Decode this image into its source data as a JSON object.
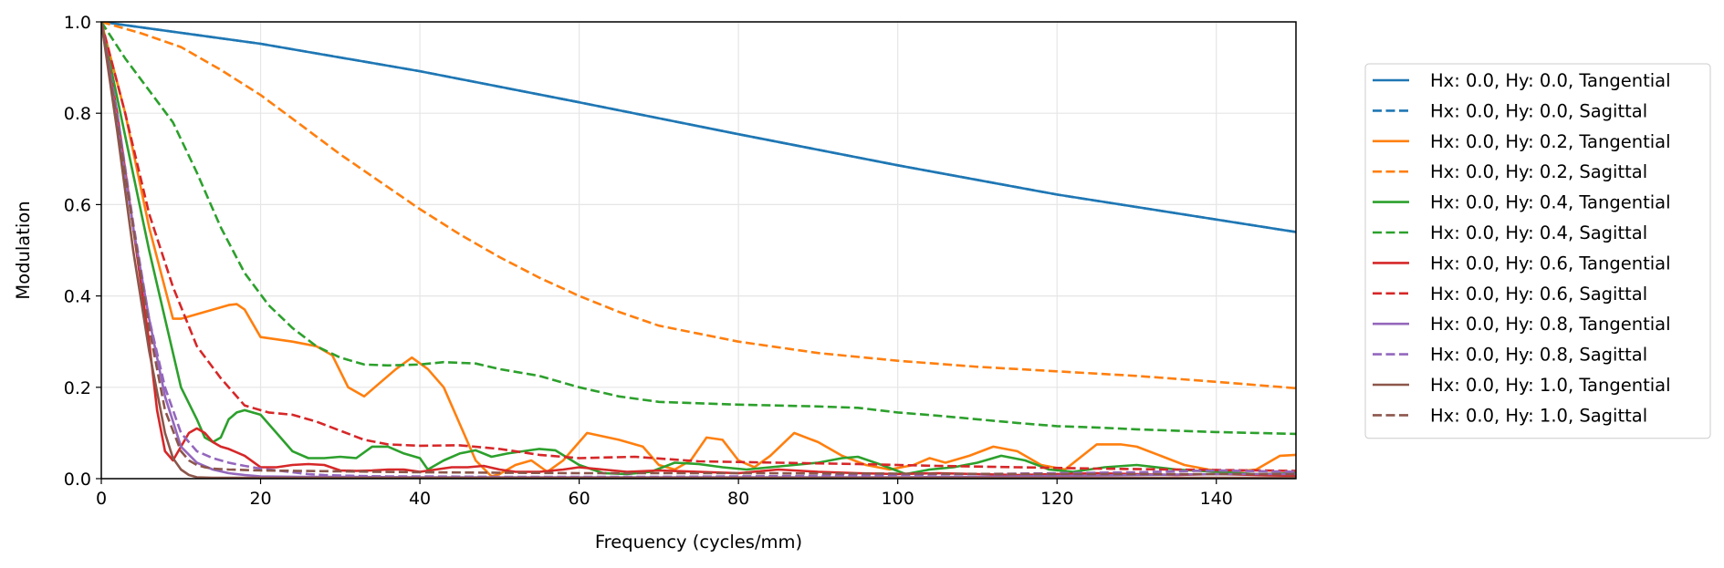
{
  "chart_data": {
    "type": "line",
    "title": "",
    "xlabel": "Frequency (cycles/mm)",
    "ylabel": "Modulation",
    "xlim": [
      0,
      150
    ],
    "ylim": [
      0,
      1.0
    ],
    "xticks": [
      0,
      20,
      40,
      60,
      80,
      100,
      120,
      140
    ],
    "yticks": [
      0.0,
      0.2,
      0.4,
      0.6,
      0.8,
      1.0
    ],
    "xtick_labels": [
      "0",
      "20",
      "40",
      "60",
      "80",
      "100",
      "120",
      "140"
    ],
    "ytick_labels": [
      "0.0",
      "0.2",
      "0.4",
      "0.6",
      "0.8",
      "1.0"
    ],
    "grid": true,
    "legend_position": "right",
    "series": [
      {
        "name": "Hx: 0.0, Hy: 0.0, Tangential",
        "color": "#1f77b4",
        "dash": "solid",
        "x": [
          0,
          20,
          40,
          60,
          80,
          100,
          120,
          150
        ],
        "y": [
          1.0,
          0.952,
          0.892,
          0.824,
          0.754,
          0.686,
          0.622,
          0.54
        ]
      },
      {
        "name": "Hx: 0.0, Hy: 0.0, Sagittal",
        "color": "#1f77b4",
        "dash": "dashed",
        "x": [
          0,
          20,
          40,
          60,
          80,
          100,
          120,
          150
        ],
        "y": [
          1.0,
          0.952,
          0.892,
          0.824,
          0.754,
          0.686,
          0.622,
          0.54
        ]
      },
      {
        "name": "Hx: 0.0, Hy: 0.2, Tangential",
        "color": "#ff7f0e",
        "dash": "solid",
        "x": [
          0,
          3,
          6,
          9,
          10,
          12,
          15,
          16,
          17,
          18,
          19,
          20,
          24,
          27,
          29,
          31,
          33,
          35,
          37,
          39,
          41,
          43,
          45,
          47,
          49,
          50,
          52,
          54,
          56,
          58,
          61,
          65,
          68,
          70,
          72,
          74,
          76,
          78,
          80,
          82,
          84,
          87,
          90,
          93,
          96,
          99,
          102,
          104,
          106,
          109,
          112,
          115,
          118,
          121,
          125,
          128,
          130,
          133,
          136,
          139,
          142,
          145,
          148,
          150
        ],
        "y": [
          1.0,
          0.8,
          0.55,
          0.35,
          0.35,
          0.36,
          0.375,
          0.38,
          0.382,
          0.37,
          0.34,
          0.31,
          0.3,
          0.29,
          0.27,
          0.2,
          0.18,
          0.21,
          0.24,
          0.265,
          0.24,
          0.2,
          0.12,
          0.04,
          0.005,
          0.01,
          0.03,
          0.04,
          0.015,
          0.04,
          0.1,
          0.085,
          0.07,
          0.03,
          0.02,
          0.04,
          0.09,
          0.085,
          0.04,
          0.025,
          0.05,
          0.1,
          0.08,
          0.05,
          0.03,
          0.02,
          0.03,
          0.045,
          0.035,
          0.05,
          0.07,
          0.06,
          0.03,
          0.02,
          0.075,
          0.075,
          0.07,
          0.05,
          0.03,
          0.02,
          0.015,
          0.02,
          0.05,
          0.052
        ]
      },
      {
        "name": "Hx: 0.0, Hy: 0.2, Sagittal",
        "color": "#ff7f0e",
        "dash": "dashed",
        "x": [
          0,
          5,
          10,
          15,
          20,
          25,
          30,
          35,
          40,
          45,
          50,
          55,
          60,
          65,
          70,
          80,
          90,
          100,
          110,
          120,
          130,
          140,
          150
        ],
        "y": [
          1.0,
          0.975,
          0.945,
          0.895,
          0.84,
          0.775,
          0.71,
          0.65,
          0.59,
          0.535,
          0.485,
          0.44,
          0.4,
          0.365,
          0.335,
          0.3,
          0.275,
          0.258,
          0.245,
          0.235,
          0.225,
          0.212,
          0.198
        ]
      },
      {
        "name": "Hx: 0.0, Hy: 0.4, Tangential",
        "color": "#2ca02c",
        "dash": "solid",
        "x": [
          0,
          3,
          6,
          8,
          10,
          12,
          13,
          14,
          15,
          16,
          17,
          18,
          20,
          22,
          24,
          26,
          28,
          30,
          32,
          34,
          36,
          38,
          40,
          41,
          43,
          45,
          47,
          49,
          51,
          53,
          55,
          57,
          60,
          63,
          66,
          69,
          72,
          75,
          78,
          81,
          84,
          87,
          90,
          93,
          95,
          98,
          101,
          104,
          107,
          110,
          113,
          116,
          119,
          122,
          126,
          130,
          135,
          140,
          145,
          150
        ],
        "y": [
          1.0,
          0.75,
          0.5,
          0.35,
          0.2,
          0.13,
          0.09,
          0.08,
          0.09,
          0.13,
          0.145,
          0.15,
          0.14,
          0.1,
          0.06,
          0.045,
          0.045,
          0.048,
          0.045,
          0.07,
          0.07,
          0.055,
          0.045,
          0.02,
          0.04,
          0.055,
          0.062,
          0.048,
          0.055,
          0.06,
          0.065,
          0.062,
          0.03,
          0.012,
          0.01,
          0.015,
          0.035,
          0.032,
          0.025,
          0.02,
          0.025,
          0.03,
          0.035,
          0.045,
          0.048,
          0.03,
          0.01,
          0.02,
          0.025,
          0.035,
          0.05,
          0.04,
          0.02,
          0.015,
          0.025,
          0.03,
          0.02,
          0.015,
          0.01,
          0.012
        ]
      },
      {
        "name": "Hx: 0.0, Hy: 0.4, Sagittal",
        "color": "#2ca02c",
        "dash": "dashed",
        "x": [
          0,
          3,
          6,
          9,
          12,
          15,
          18,
          21,
          24,
          27,
          30,
          33,
          36,
          40,
          43,
          47,
          50,
          55,
          60,
          65,
          70,
          75,
          80,
          85,
          90,
          95,
          100,
          105,
          110,
          115,
          120,
          125,
          130,
          135,
          140,
          145,
          150
        ],
        "y": [
          1.0,
          0.92,
          0.85,
          0.78,
          0.67,
          0.55,
          0.45,
          0.38,
          0.33,
          0.29,
          0.265,
          0.25,
          0.248,
          0.25,
          0.255,
          0.252,
          0.24,
          0.225,
          0.2,
          0.18,
          0.168,
          0.165,
          0.162,
          0.16,
          0.158,
          0.155,
          0.145,
          0.138,
          0.13,
          0.122,
          0.115,
          0.112,
          0.108,
          0.105,
          0.102,
          0.1,
          0.098
        ]
      },
      {
        "name": "Hx: 0.0, Hy: 0.6, Tangential",
        "color": "#d62728",
        "dash": "solid",
        "x": [
          0,
          2,
          4,
          6,
          7,
          8,
          9,
          10,
          11,
          12,
          13,
          14,
          15,
          16,
          18,
          20,
          22,
          24,
          26,
          28,
          30,
          32,
          34,
          36,
          38,
          40,
          42,
          44,
          46,
          48,
          50,
          52,
          55,
          58,
          60,
          63,
          66,
          70,
          75,
          80,
          85,
          90,
          95,
          100,
          105,
          110,
          115,
          120,
          125,
          130,
          135,
          140,
          145,
          150
        ],
        "y": [
          1.0,
          0.8,
          0.55,
          0.3,
          0.15,
          0.06,
          0.04,
          0.07,
          0.1,
          0.11,
          0.1,
          0.08,
          0.07,
          0.065,
          0.05,
          0.025,
          0.025,
          0.03,
          0.032,
          0.03,
          0.018,
          0.017,
          0.018,
          0.02,
          0.02,
          0.015,
          0.02,
          0.025,
          0.025,
          0.028,
          0.02,
          0.015,
          0.015,
          0.02,
          0.025,
          0.02,
          0.015,
          0.018,
          0.015,
          0.012,
          0.02,
          0.015,
          0.012,
          0.01,
          0.012,
          0.01,
          0.008,
          0.01,
          0.012,
          0.01,
          0.008,
          0.01,
          0.008,
          0.006
        ]
      },
      {
        "name": "Hx: 0.0, Hy: 0.6, Sagittal",
        "color": "#d62728",
        "dash": "dashed",
        "x": [
          0,
          3,
          6,
          9,
          12,
          15,
          18,
          21,
          24,
          27,
          30,
          33,
          36,
          40,
          45,
          50,
          55,
          60,
          67,
          75,
          85,
          95,
          105,
          115,
          125,
          135,
          145,
          150
        ],
        "y": [
          1.0,
          0.8,
          0.58,
          0.42,
          0.29,
          0.22,
          0.16,
          0.145,
          0.14,
          0.125,
          0.105,
          0.085,
          0.075,
          0.072,
          0.073,
          0.065,
          0.052,
          0.045,
          0.048,
          0.038,
          0.035,
          0.032,
          0.028,
          0.025,
          0.022,
          0.02,
          0.018,
          0.017
        ]
      },
      {
        "name": "Hx: 0.0, Hy: 0.8, Tangential",
        "color": "#9467bd",
        "dash": "solid",
        "x": [
          0,
          2,
          4,
          6,
          8,
          10,
          12,
          14,
          16,
          18,
          20,
          25,
          30,
          40,
          50,
          60,
          70,
          80,
          90,
          100,
          110,
          120,
          130,
          140,
          150
        ],
        "y": [
          1.0,
          0.78,
          0.55,
          0.35,
          0.18,
          0.07,
          0.035,
          0.02,
          0.012,
          0.008,
          0.005,
          0.004,
          0.004,
          0.003,
          0.003,
          0.003,
          0.003,
          0.003,
          0.003,
          0.003,
          0.004,
          0.006,
          0.008,
          0.01,
          0.01
        ]
      },
      {
        "name": "Hx: 0.0, Hy: 0.8, Sagittal",
        "color": "#9467bd",
        "dash": "dashed",
        "x": [
          0,
          2,
          4,
          6,
          8,
          10,
          12,
          14,
          16,
          18,
          20,
          22,
          24,
          26,
          28,
          32,
          36,
          40,
          50,
          60,
          70,
          80,
          90,
          100,
          110,
          120,
          130,
          140,
          150
        ],
        "y": [
          1.0,
          0.8,
          0.56,
          0.35,
          0.2,
          0.1,
          0.06,
          0.045,
          0.035,
          0.028,
          0.022,
          0.018,
          0.014,
          0.01,
          0.008,
          0.006,
          0.005,
          0.005,
          0.004,
          0.004,
          0.004,
          0.005,
          0.006,
          0.008,
          0.01,
          0.012,
          0.014,
          0.018,
          0.015
        ]
      },
      {
        "name": "Hx: 0.0, Hy: 1.0, Tangential",
        "color": "#8c564b",
        "dash": "solid",
        "x": [
          0,
          2,
          4,
          6,
          8,
          9,
          10,
          11,
          12,
          14,
          16,
          20,
          30,
          40,
          60,
          80,
          100,
          120,
          140,
          150
        ],
        "y": [
          1.0,
          0.76,
          0.5,
          0.28,
          0.1,
          0.045,
          0.02,
          0.008,
          0.003,
          0.002,
          0.002,
          0.002,
          0.002,
          0.002,
          0.002,
          0.002,
          0.002,
          0.002,
          0.002,
          0.002
        ]
      },
      {
        "name": "Hx: 0.0, Hy: 1.0, Sagittal",
        "color": "#8c564b",
        "dash": "dashed",
        "x": [
          0,
          2,
          4,
          6,
          8,
          10,
          11,
          12,
          13,
          14,
          16,
          20,
          30,
          40,
          60,
          80,
          100,
          120,
          140,
          150
        ],
        "y": [
          1.0,
          0.78,
          0.55,
          0.33,
          0.15,
          0.06,
          0.04,
          0.03,
          0.025,
          0.022,
          0.02,
          0.018,
          0.016,
          0.014,
          0.012,
          0.012,
          0.011,
          0.01,
          0.01,
          0.01
        ]
      }
    ]
  }
}
